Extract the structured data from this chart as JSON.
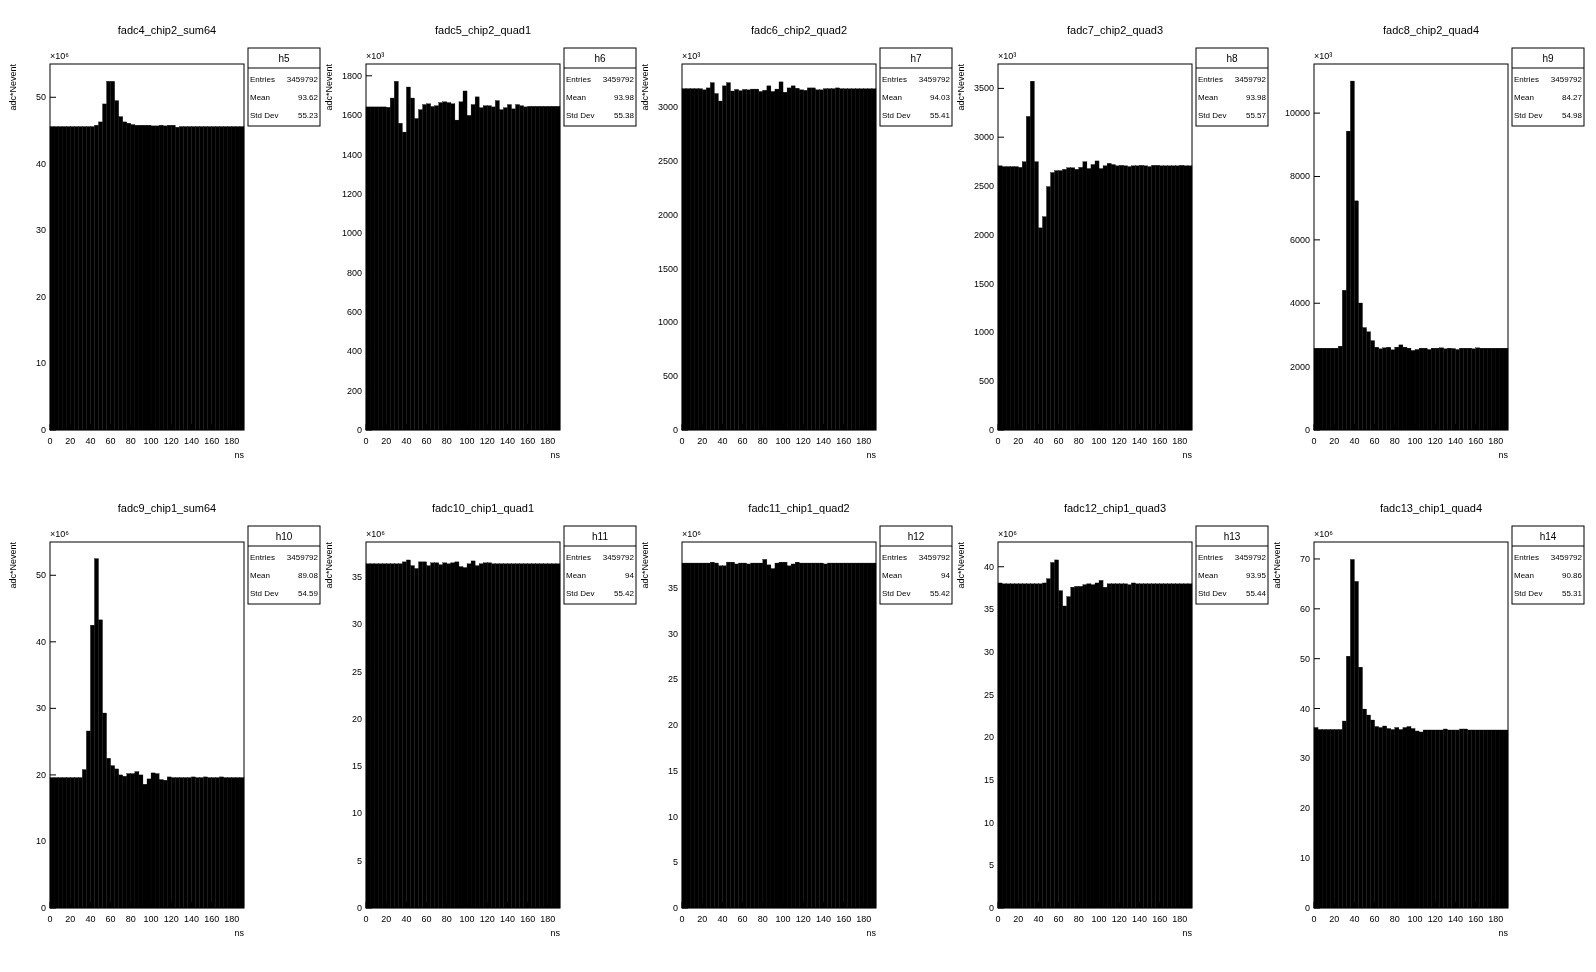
{
  "chart_data": [
    {
      "type": "histogram",
      "title": "fadc4_chip2_sum64",
      "xlabel": "ns",
      "ylabel": "adc*Nevent",
      "color": "#000000",
      "xlim": [
        0,
        192
      ],
      "xticks": [
        0,
        20,
        40,
        60,
        80,
        100,
        120,
        140,
        160,
        180
      ],
      "ylim": [
        0,
        55
      ],
      "yticks": [
        0,
        10,
        20,
        30,
        40,
        50
      ],
      "bins": [
        0,
        4,
        8,
        12,
        16,
        20,
        24,
        28,
        32,
        36,
        40,
        44,
        48,
        52,
        56,
        60,
        64,
        68,
        72,
        76,
        80,
        84,
        88,
        92,
        96,
        100,
        104,
        108,
        112,
        116,
        120,
        124,
        128,
        132,
        136,
        140,
        144,
        148,
        152,
        156,
        160,
        164,
        168,
        172,
        176,
        180,
        184,
        188,
        192
      ],
      "values": [
        45.6,
        45.6,
        45.6,
        45.6,
        45.6,
        45.6,
        45.6,
        45.6,
        45.6,
        45.6,
        45.6,
        45.8,
        46.3,
        49.0,
        52.4,
        52.4,
        49.5,
        47.1,
        46.3,
        46.1,
        45.9,
        45.8,
        45.8,
        45.8,
        45.8,
        45.7,
        45.7,
        45.8,
        45.7,
        45.8,
        45.8,
        45.5,
        45.6,
        45.6,
        45.6,
        45.6,
        45.6,
        45.6,
        45.6,
        45.6,
        45.6,
        45.6,
        45.6,
        45.6,
        45.6,
        45.6,
        45.6,
        45.6
      ],
      "annotations": [
        "×10⁶",
        "h5",
        "Entries",
        "3459792",
        "Mean",
        "93.62",
        "Std Dev",
        "55.23"
      ]
    },
    {
      "type": "histogram",
      "title": "fadc5_chip2_quad1",
      "xlabel": "ns",
      "ylabel": "adc*Nevent",
      "color": "#000000",
      "xlim": [
        0,
        192
      ],
      "xticks": [
        0,
        20,
        40,
        60,
        80,
        100,
        120,
        140,
        160,
        180
      ],
      "ylim": [
        0,
        1860
      ],
      "yticks": [
        0,
        200,
        400,
        600,
        800,
        1000,
        1200,
        1400,
        1600,
        1800
      ],
      "bins": [
        0,
        4,
        8,
        12,
        16,
        20,
        24,
        28,
        32,
        36,
        40,
        44,
        48,
        52,
        56,
        60,
        64,
        68,
        72,
        76,
        80,
        84,
        88,
        92,
        96,
        100,
        104,
        108,
        112,
        116,
        120,
        124,
        128,
        132,
        136,
        140,
        144,
        148,
        152,
        156,
        160,
        164,
        168,
        172,
        176,
        180,
        184,
        188,
        192
      ],
      "values": [
        1642,
        1642,
        1642,
        1642,
        1642,
        1640,
        1687,
        1772,
        1559,
        1514,
        1743,
        1687,
        1583,
        1628,
        1654,
        1658,
        1644,
        1648,
        1664,
        1668,
        1664,
        1658,
        1575,
        1668,
        1723,
        1599,
        1654,
        1693,
        1638,
        1648,
        1648,
        1642,
        1674,
        1628,
        1638,
        1654,
        1632,
        1654,
        1648,
        1642,
        1645,
        1645,
        1645,
        1645,
        1645,
        1645,
        1645,
        1645
      ],
      "annotations": [
        "×10³",
        "h6",
        "Entries",
        "3459792",
        "Mean",
        "93.98",
        "Std Dev",
        "55.38"
      ]
    },
    {
      "type": "histogram",
      "title": "fadc6_chip2_quad2",
      "xlabel": "ns",
      "ylabel": "adc*Nevent",
      "color": "#000000",
      "xlim": [
        0,
        192
      ],
      "xticks": [
        0,
        20,
        40,
        60,
        80,
        100,
        120,
        140,
        160,
        180
      ],
      "ylim": [
        0,
        3400
      ],
      "yticks": [
        0,
        500,
        1000,
        1500,
        2000,
        2500,
        3000
      ],
      "bins": [
        0,
        4,
        8,
        12,
        16,
        20,
        24,
        28,
        32,
        36,
        40,
        44,
        48,
        52,
        56,
        60,
        64,
        68,
        72,
        76,
        80,
        84,
        88,
        92,
        96,
        100,
        104,
        108,
        112,
        116,
        120,
        124,
        128,
        132,
        136,
        140,
        144,
        148,
        152,
        156,
        160,
        164,
        168,
        172,
        176,
        180,
        184,
        188,
        192
      ],
      "values": [
        3171,
        3171,
        3171,
        3171,
        3171,
        3160,
        3178,
        3227,
        3126,
        3056,
        3197,
        3227,
        3149,
        3164,
        3152,
        3164,
        3160,
        3167,
        3167,
        3145,
        3156,
        3197,
        3145,
        3167,
        3234,
        3138,
        3178,
        3197,
        3175,
        3160,
        3156,
        3178,
        3178,
        3160,
        3160,
        3171,
        3171,
        3171,
        3178,
        3171,
        3170,
        3170,
        3170,
        3170,
        3170,
        3170,
        3170,
        3170
      ],
      "annotations": [
        "×10³",
        "h7",
        "Entries",
        "3459792",
        "Mean",
        "94.03",
        "Std Dev",
        "55.41"
      ]
    },
    {
      "type": "histogram",
      "title": "fadc7_chip2_quad3",
      "xlabel": "ns",
      "ylabel": "adc*Nevent",
      "color": "#000000",
      "xlim": [
        0,
        192
      ],
      "xticks": [
        0,
        20,
        40,
        60,
        80,
        100,
        120,
        140,
        160,
        180
      ],
      "ylim": [
        0,
        3750
      ],
      "yticks": [
        0,
        500,
        1000,
        1500,
        2000,
        2500,
        3000,
        3500
      ],
      "bins": [
        0,
        4,
        8,
        12,
        16,
        20,
        24,
        28,
        32,
        36,
        40,
        44,
        48,
        52,
        56,
        60,
        64,
        68,
        72,
        76,
        80,
        84,
        88,
        92,
        96,
        100,
        104,
        108,
        112,
        116,
        120,
        124,
        128,
        132,
        136,
        140,
        144,
        148,
        152,
        156,
        160,
        164,
        168,
        172,
        176,
        180,
        184,
        188,
        192
      ],
      "values": [
        2707,
        2699,
        2699,
        2699,
        2699,
        2691,
        2749,
        3213,
        3574,
        2749,
        2071,
        2186,
        2494,
        2638,
        2658,
        2658,
        2671,
        2687,
        2687,
        2671,
        2691,
        2749,
        2679,
        2720,
        2757,
        2679,
        2707,
        2732,
        2720,
        2707,
        2712,
        2707,
        2699,
        2707,
        2707,
        2712,
        2707,
        2699,
        2712,
        2712,
        2707,
        2707,
        2707,
        2707,
        2707,
        2712,
        2707,
        2707
      ],
      "annotations": [
        "×10³",
        "h8",
        "Entries",
        "3459792",
        "Mean",
        "93.98",
        "Std Dev",
        "55.57"
      ]
    },
    {
      "type": "histogram",
      "title": "fadc8_chip2_quad4",
      "xlabel": "ns",
      "color": "#000000",
      "xlim": [
        0,
        192
      ],
      "xticks": [
        0,
        20,
        40,
        60,
        80,
        100,
        120,
        140,
        160,
        180
      ],
      "ylim": [
        0,
        11550
      ],
      "yticks": [
        0,
        2000,
        4000,
        6000,
        8000,
        10000
      ],
      "bins": [
        0,
        4,
        8,
        12,
        16,
        20,
        24,
        28,
        32,
        36,
        40,
        44,
        48,
        52,
        56,
        60,
        64,
        68,
        72,
        76,
        80,
        84,
        88,
        92,
        96,
        100,
        104,
        108,
        112,
        116,
        120,
        124,
        128,
        132,
        136,
        140,
        144,
        148,
        152,
        156,
        160,
        164,
        168,
        172,
        176,
        180,
        184,
        188,
        192
      ],
      "values": [
        2583,
        2583,
        2583,
        2583,
        2583,
        2583,
        2645,
        4411,
        9432,
        11012,
        7231,
        4008,
        3233,
        3099,
        2820,
        2614,
        2562,
        2593,
        2614,
        2531,
        2614,
        2686,
        2614,
        2583,
        2510,
        2541,
        2583,
        2583,
        2541,
        2583,
        2583,
        2593,
        2562,
        2583,
        2572,
        2541,
        2583,
        2583,
        2583,
        2562,
        2593,
        2583,
        2583,
        2583,
        2583,
        2583,
        2583,
        2583
      ],
      "annotations": [
        "×10³",
        "h9",
        "Entries",
        "3459792",
        "Mean",
        "84.27",
        "Std Dev",
        "54.98"
      ]
    },
    {
      "type": "histogram",
      "title": "fadc9_chip1_sum64",
      "xlabel": "ns",
      "ylabel": "adc*Nevent",
      "color": "#000000",
      "xlim": [
        0,
        192
      ],
      "xticks": [
        0,
        20,
        40,
        60,
        80,
        100,
        120,
        140,
        160,
        180
      ],
      "ylim": [
        0,
        55
      ],
      "yticks": [
        0,
        10,
        20,
        30,
        40,
        50
      ],
      "bins": [
        0,
        4,
        8,
        12,
        16,
        20,
        24,
        28,
        32,
        36,
        40,
        44,
        48,
        52,
        56,
        60,
        64,
        68,
        72,
        76,
        80,
        84,
        88,
        92,
        96,
        100,
        104,
        108,
        112,
        116,
        120,
        124,
        128,
        132,
        136,
        140,
        144,
        148,
        152,
        156,
        160,
        164,
        168,
        172,
        176,
        180,
        184,
        188,
        192
      ],
      "values": [
        19.6,
        19.6,
        19.6,
        19.6,
        19.6,
        19.6,
        19.6,
        19.6,
        20.8,
        26.6,
        42.5,
        52.5,
        43.3,
        29.3,
        22.5,
        21.4,
        20.9,
        20.0,
        19.8,
        20.2,
        20.2,
        20.5,
        20.0,
        18.6,
        19.4,
        20.3,
        20.2,
        19.3,
        19.2,
        19.7,
        19.6,
        19.6,
        19.6,
        19.6,
        19.6,
        19.7,
        19.6,
        19.6,
        19.7,
        19.6,
        19.6,
        19.6,
        19.7,
        19.6,
        19.6,
        19.6,
        19.6,
        19.6
      ],
      "annotations": [
        "×10⁶",
        "h10",
        "Entries",
        "3459792",
        "Mean",
        "89.08",
        "Std Dev",
        "54.59"
      ]
    },
    {
      "type": "histogram",
      "title": "fadc10_chip1_quad1",
      "xlabel": "ns",
      "ylabel": "adc*Nevent",
      "color": "#000000",
      "xlim": [
        0,
        192
      ],
      "xticks": [
        0,
        20,
        40,
        60,
        80,
        100,
        120,
        140,
        160,
        180
      ],
      "ylim": [
        0,
        38.7
      ],
      "yticks": [
        0,
        5,
        10,
        15,
        20,
        25,
        30,
        35
      ],
      "bins": [
        0,
        4,
        8,
        12,
        16,
        20,
        24,
        28,
        32,
        36,
        40,
        44,
        48,
        52,
        56,
        60,
        64,
        68,
        72,
        76,
        80,
        84,
        88,
        92,
        96,
        100,
        104,
        108,
        112,
        116,
        120,
        124,
        128,
        132,
        136,
        140,
        144,
        148,
        152,
        156,
        160,
        164,
        168,
        172,
        176,
        180,
        184,
        188,
        192
      ],
      "values": [
        36.4,
        36.4,
        36.4,
        36.4,
        36.4,
        36.4,
        36.4,
        36.4,
        36.4,
        36.6,
        36.8,
        36.2,
        35.9,
        36.6,
        36.6,
        36.2,
        36.5,
        36.5,
        36.3,
        36.5,
        36.4,
        36.5,
        36.6,
        36.1,
        36.0,
        36.4,
        36.7,
        36.2,
        36.4,
        36.5,
        36.5,
        36.4,
        36.4,
        36.4,
        36.4,
        36.4,
        36.4,
        36.4,
        36.4,
        36.4,
        36.4,
        36.4,
        36.4,
        36.4,
        36.4,
        36.4,
        36.4,
        36.4
      ],
      "annotations": [
        "×10⁶",
        "h11",
        "Entries",
        "3459792",
        "Mean",
        "94",
        "Std Dev",
        "55.42"
      ]
    },
    {
      "type": "histogram",
      "title": "fadc11_chip1_quad2",
      "xlabel": "ns",
      "ylabel": "adc*Nevent",
      "color": "#000000",
      "xlim": [
        0,
        192
      ],
      "xticks": [
        0,
        20,
        40,
        60,
        80,
        100,
        120,
        140,
        160,
        180
      ],
      "ylim": [
        0,
        40
      ],
      "yticks": [
        0,
        5,
        10,
        15,
        20,
        25,
        30,
        35
      ],
      "bins": [
        0,
        4,
        8,
        12,
        16,
        20,
        24,
        28,
        32,
        36,
        40,
        44,
        48,
        52,
        56,
        60,
        64,
        68,
        72,
        76,
        80,
        84,
        88,
        92,
        96,
        100,
        104,
        108,
        112,
        116,
        120,
        124,
        128,
        132,
        136,
        140,
        144,
        148,
        152,
        156,
        160,
        164,
        168,
        172,
        176,
        180,
        184,
        188,
        192
      ],
      "values": [
        37.7,
        37.7,
        37.7,
        37.7,
        37.7,
        37.7,
        37.7,
        37.8,
        37.7,
        37.4,
        37.4,
        37.8,
        37.8,
        37.6,
        37.7,
        37.7,
        37.6,
        37.7,
        37.7,
        37.7,
        38.1,
        37.5,
        37.1,
        37.7,
        37.8,
        37.8,
        37.4,
        37.6,
        37.8,
        37.7,
        37.7,
        37.7,
        37.7,
        37.7,
        37.7,
        37.6,
        37.7,
        37.7,
        37.7,
        37.7,
        37.7,
        37.7,
        37.7,
        37.7,
        37.7,
        37.7,
        37.7,
        37.7
      ],
      "annotations": [
        "×10⁶",
        "h12",
        "Entries",
        "3459792",
        "Mean",
        "94",
        "Std Dev",
        "55.42"
      ]
    },
    {
      "type": "histogram",
      "title": "fadc12_chip1_quad3",
      "xlabel": "ns",
      "ylabel": "adc*Nevent",
      "color": "#000000",
      "xlim": [
        0,
        192
      ],
      "xticks": [
        0,
        20,
        40,
        60,
        80,
        100,
        120,
        140,
        160,
        180
      ],
      "ylim": [
        0,
        42.9
      ],
      "yticks": [
        0,
        5,
        10,
        15,
        20,
        25,
        30,
        35,
        40
      ],
      "bins": [
        0,
        4,
        8,
        12,
        16,
        20,
        24,
        28,
        32,
        36,
        40,
        44,
        48,
        52,
        56,
        60,
        64,
        68,
        72,
        76,
        80,
        84,
        88,
        92,
        96,
        100,
        104,
        108,
        112,
        116,
        120,
        124,
        128,
        132,
        136,
        140,
        144,
        148,
        152,
        156,
        160,
        164,
        168,
        172,
        176,
        180,
        184,
        188,
        192
      ],
      "values": [
        38.1,
        38.0,
        38.0,
        38.0,
        38.0,
        38.0,
        38.0,
        38.0,
        38.0,
        38.0,
        38.0,
        38.1,
        38.6,
        40.5,
        40.8,
        37.2,
        35.4,
        36.5,
        37.6,
        37.7,
        37.7,
        37.9,
        38.0,
        37.9,
        38.1,
        38.4,
        37.6,
        38.0,
        38.0,
        38.0,
        38.0,
        38.0,
        37.9,
        38.1,
        38.0,
        38.0,
        38.0,
        38.0,
        38.0,
        38.0,
        38.0,
        38.0,
        38.0,
        38.0,
        38.0,
        38.0,
        38.0,
        38.0
      ],
      "annotations": [
        "×10⁶",
        "h13",
        "Entries",
        "3459792",
        "Mean",
        "93.95",
        "Std Dev",
        "55.44"
      ]
    },
    {
      "type": "histogram",
      "title": "fadc13_chip1_quad4",
      "xlabel": "ns",
      "ylabel": "adc*Nevent",
      "color": "#000000",
      "xlim": [
        0,
        192
      ],
      "xticks": [
        0,
        20,
        40,
        60,
        80,
        100,
        120,
        140,
        160,
        180
      ],
      "ylim": [
        0,
        73.4
      ],
      "yticks": [
        0,
        10,
        20,
        30,
        40,
        50,
        60,
        70
      ],
      "bins": [
        0,
        4,
        8,
        12,
        16,
        20,
        24,
        28,
        32,
        36,
        40,
        44,
        48,
        52,
        56,
        60,
        64,
        68,
        72,
        76,
        80,
        84,
        88,
        92,
        96,
        100,
        104,
        108,
        112,
        116,
        120,
        124,
        128,
        132,
        136,
        140,
        144,
        148,
        152,
        156,
        160,
        164,
        168,
        172,
        176,
        180,
        184,
        188,
        192
      ],
      "values": [
        36.2,
        35.8,
        35.8,
        35.8,
        35.8,
        35.8,
        35.8,
        37.5,
        50.5,
        69.9,
        65.5,
        48.3,
        39.9,
        38.7,
        37.7,
        36.4,
        36.2,
        36.5,
        36.0,
        35.8,
        36.2,
        35.8,
        36.2,
        36.4,
        36.0,
        35.5,
        35.3,
        35.7,
        35.7,
        35.7,
        35.7,
        35.7,
        35.9,
        35.7,
        35.7,
        35.7,
        35.9,
        35.9,
        35.7,
        35.7,
        35.7,
        35.7,
        35.7,
        35.7,
        35.7,
        35.7,
        35.7,
        35.7
      ],
      "annotations": [
        "×10⁶",
        "h14",
        "Entries",
        "3459792",
        "Mean",
        "90.86",
        "Std Dev",
        "55.31"
      ]
    }
  ]
}
